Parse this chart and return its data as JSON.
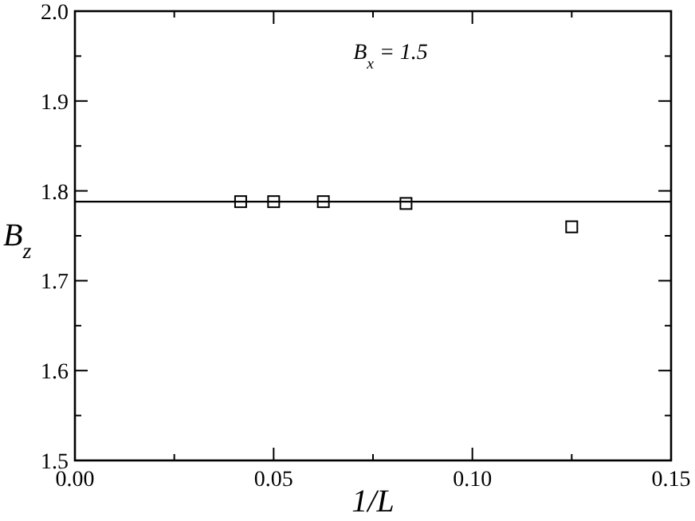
{
  "chart_data": {
    "type": "scatter",
    "xlabel": "1/L",
    "ylabel": "B$_{z}$",
    "annotations": [
      "B$_{x}$ = 1.5"
    ],
    "x": [
      0.0417,
      0.05,
      0.0625,
      0.0833,
      0.125
    ],
    "series": [
      {
        "color": "#000000",
        "values": [
          1.788,
          1.788,
          1.788,
          1.786,
          1.76
        ]
      }
    ],
    "marker": "square",
    "ref_lines": [
      {
        "axis": "y",
        "value": 1.788,
        "color": "#000000"
      }
    ],
    "xlim": [
      0,
      0.15
    ],
    "ylim": [
      1.5,
      2.0
    ],
    "xticks": [
      {
        "value": 0,
        "label": "0.00"
      },
      {
        "value": 0.025,
        "label": null
      },
      {
        "value": 0.05,
        "label": "0.05"
      },
      {
        "value": 0.075,
        "label": null
      },
      {
        "value": 0.1,
        "label": "0.10"
      },
      {
        "value": 0.125,
        "label": null
      },
      {
        "value": 0.15,
        "label": "0.15"
      }
    ],
    "yticks": [
      1.5,
      {
        "value": 1.55,
        "label": null
      },
      1.6,
      {
        "value": 1.65,
        "label": null
      },
      1.7,
      {
        "value": 1.75,
        "label": null
      },
      1.8,
      {
        "value": 1.85,
        "label": null
      },
      1.9,
      {
        "value": 1.95,
        "label": null
      },
      {
        "value": 2.0,
        "label": "2.0"
      }
    ],
    "grid": false
  }
}
